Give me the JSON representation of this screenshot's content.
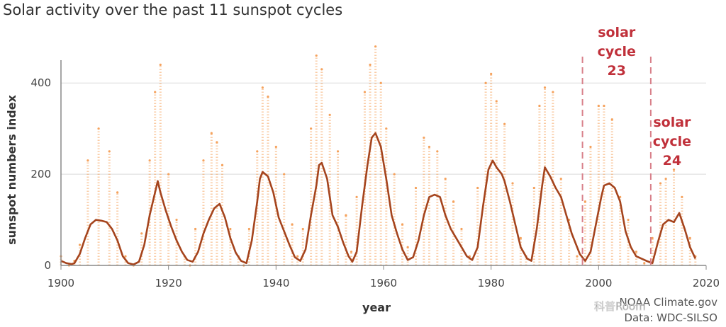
{
  "chart_data": {
    "type": "scatter",
    "title": "Solar activity over the past 11 sunspot cycles",
    "xlabel": "year",
    "ylabel": "sunspot numbers index",
    "xlim": [
      1900,
      2020
    ],
    "ylim": [
      0,
      450
    ],
    "x_ticks": [
      1900,
      1920,
      1940,
      1960,
      1980,
      2000,
      2020
    ],
    "y_ticks": [
      0,
      200,
      400
    ],
    "grid": "horizontal",
    "series": [
      {
        "name": "",
        "kind": "daily-scatter",
        "color": "#f5a25d",
        "x": [
          1900,
          1901.5,
          1902.5,
          1903.5,
          1905,
          1907,
          1909,
          1910.5,
          1912,
          1913.5,
          1915,
          1916.5,
          1917.5,
          1918.5,
          1920,
          1921.5,
          1923,
          1924,
          1925,
          1926.5,
          1928,
          1929,
          1930,
          1931.5,
          1933,
          1934,
          1935,
          1936.5,
          1937.5,
          1938.5,
          1940,
          1941.5,
          1943,
          1944,
          1945,
          1946.5,
          1947.5,
          1948.5,
          1950,
          1951.5,
          1953,
          1954,
          1955,
          1956.5,
          1957.5,
          1958.5,
          1959.5,
          1960.5,
          1962,
          1963.5,
          1964.5,
          1966,
          1967.5,
          1968.5,
          1970,
          1971.5,
          1973,
          1974.5,
          1976,
          1977.5,
          1979,
          1980,
          1981,
          1982.5,
          1984,
          1985.5,
          1986.5,
          1988,
          1989,
          1990,
          1991.5,
          1993,
          1994.5,
          1996,
          1997.5,
          1998.5,
          2000,
          2001,
          2002.5,
          2004,
          2005.5,
          2007,
          2008.5,
          2010,
          2011.5,
          2012.5,
          2014,
          2015.5,
          2017,
          2018
        ],
        "y": [
          20,
          0,
          10,
          45,
          230,
          300,
          250,
          160,
          20,
          0,
          70,
          230,
          380,
          440,
          200,
          100,
          20,
          0,
          80,
          230,
          290,
          270,
          220,
          80,
          20,
          0,
          80,
          250,
          390,
          370,
          260,
          200,
          90,
          20,
          80,
          300,
          460,
          430,
          330,
          250,
          110,
          30,
          150,
          380,
          440,
          480,
          400,
          300,
          200,
          90,
          40,
          170,
          280,
          260,
          250,
          190,
          140,
          80,
          20,
          170,
          400,
          420,
          360,
          310,
          180,
          60,
          20,
          170,
          350,
          390,
          380,
          190,
          100,
          20,
          140,
          260,
          350,
          350,
          320,
          150,
          100,
          30,
          5,
          60,
          180,
          190,
          210,
          150,
          60,
          20
        ]
      },
      {
        "name": "",
        "kind": "smoothed",
        "color": "#a5441d",
        "x": [
          1900,
          1901,
          1902,
          1902.5,
          1903.5,
          1904.5,
          1905.5,
          1906.5,
          1907.5,
          1908.5,
          1909.5,
          1910.5,
          1911.5,
          1912.5,
          1913.5,
          1914.5,
          1915.5,
          1916.5,
          1917.5,
          1918,
          1918.5,
          1919.5,
          1920.5,
          1921.5,
          1922.5,
          1923.5,
          1924.5,
          1925.5,
          1926.5,
          1927.5,
          1928.5,
          1929.5,
          1930.5,
          1931.5,
          1932.5,
          1933.5,
          1934.5,
          1935.5,
          1936.5,
          1937,
          1937.5,
          1938.5,
          1939.5,
          1940.5,
          1941.5,
          1942.5,
          1943.5,
          1944.5,
          1945.5,
          1946.5,
          1947.5,
          1948,
          1948.5,
          1949.5,
          1950.5,
          1951.5,
          1952.5,
          1953.5,
          1954.2,
          1955,
          1956,
          1957,
          1957.8,
          1958.5,
          1959.5,
          1960.5,
          1961.5,
          1962.5,
          1963.5,
          1964.5,
          1965.5,
          1966.5,
          1967.5,
          1968.5,
          1969.5,
          1970.5,
          1971.5,
          1972.5,
          1973.5,
          1974.5,
          1975.5,
          1976.5,
          1977.5,
          1978.5,
          1979.5,
          1980.3,
          1981,
          1982,
          1982.5,
          1983.5,
          1984.5,
          1985.5,
          1986.7,
          1987.5,
          1988.5,
          1989.5,
          1990,
          1991,
          1992,
          1993,
          1994,
          1995,
          1996.5,
          1997.5,
          1998.5,
          1999.5,
          2000.5,
          2001,
          2002,
          2003,
          2004,
          2005,
          2006,
          2007,
          2008.9,
          2010,
          2011,
          2012,
          2013,
          2014,
          2015,
          2016,
          2017,
          2018
        ],
        "y": [
          10,
          5,
          3,
          5,
          25,
          60,
          90,
          100,
          98,
          95,
          80,
          55,
          20,
          5,
          2,
          8,
          45,
          110,
          160,
          185,
          160,
          120,
          85,
          55,
          30,
          12,
          8,
          30,
          70,
          100,
          125,
          135,
          105,
          60,
          28,
          10,
          5,
          55,
          140,
          190,
          205,
          195,
          160,
          105,
          75,
          45,
          18,
          10,
          35,
          110,
          175,
          220,
          225,
          190,
          110,
          85,
          50,
          20,
          8,
          30,
          130,
          220,
          280,
          290,
          260,
          190,
          110,
          70,
          35,
          12,
          18,
          55,
          110,
          150,
          155,
          150,
          110,
          80,
          60,
          40,
          20,
          12,
          40,
          130,
          210,
          230,
          215,
          200,
          185,
          140,
          90,
          40,
          15,
          10,
          80,
          175,
          215,
          195,
          170,
          150,
          110,
          70,
          25,
          10,
          30,
          90,
          150,
          175,
          180,
          170,
          140,
          75,
          40,
          20,
          10,
          5,
          50,
          90,
          100,
          95,
          115,
          80,
          40,
          15
        ]
      }
    ],
    "annotations": [
      {
        "lines": [
          "solar",
          "cycle",
          "23"
        ],
        "x": 1997,
        "x_end": 2009.7,
        "y": 450,
        "marker": "dashed-vertical"
      },
      {
        "lines": [
          "solar",
          "cycle",
          "24"
        ],
        "x": 2009.7,
        "y": 270,
        "marker": "none"
      }
    ],
    "credits": [
      "NOAA Climate.gov",
      "Data: WDC-SILSO"
    ],
    "watermark": "科普Room"
  }
}
